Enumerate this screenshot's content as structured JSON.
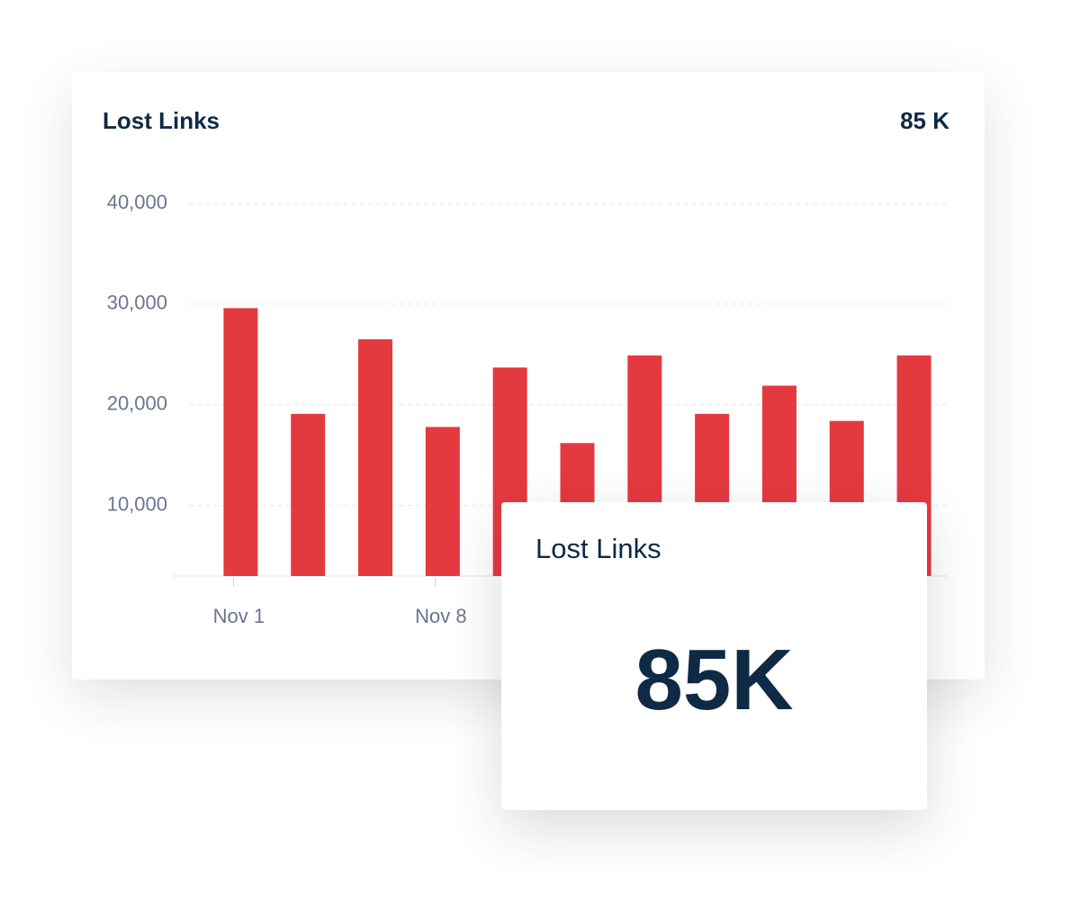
{
  "chart_data": {
    "type": "bar",
    "title": "Lost Links",
    "summary": "85 K",
    "categories": [
      "Nov 1",
      null,
      null,
      "Nov 8",
      null,
      null,
      null,
      null,
      null,
      null,
      null
    ],
    "values": [
      29600,
      19100,
      26500,
      17800,
      23700,
      16200,
      24900,
      19100,
      21900,
      18400,
      24900
    ],
    "color": "#e53940",
    "ylim": [
      3000,
      40000
    ],
    "yticks": [
      {
        "value": 10000,
        "label": "10,000"
      },
      {
        "value": 20000,
        "label": "20,000"
      },
      {
        "value": 30000,
        "label": "30,000"
      },
      {
        "value": 40000,
        "label": "40,000"
      }
    ],
    "grid": true
  },
  "overlay": {
    "title": "Lost Links",
    "value": "85K"
  }
}
